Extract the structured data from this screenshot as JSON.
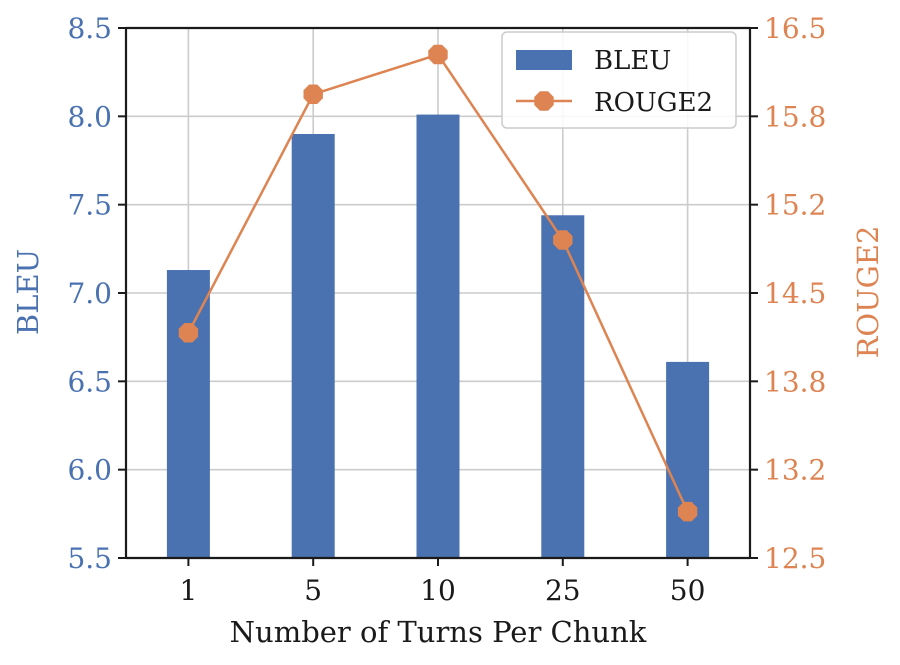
{
  "chart_data": {
    "type": "bar",
    "categories": [
      "1",
      "5",
      "10",
      "25",
      "50"
    ],
    "xlabel": "Number of Turns Per Chunk",
    "series": [
      {
        "name": "BLEU",
        "type": "bar",
        "axis": "left",
        "values": [
          7.13,
          7.9,
          8.01,
          7.44,
          6.61
        ],
        "color": "#4a72b0"
      },
      {
        "name": "ROUGE2",
        "type": "line",
        "axis": "right",
        "marker": "octagon",
        "values": [
          14.2,
          16.0,
          16.3,
          14.9,
          12.85
        ],
        "color": "#dd8452"
      }
    ],
    "y_left": {
      "label": "BLEU",
      "lim": [
        5.5,
        8.5
      ],
      "ticks": [
        "5.5",
        "6.0",
        "6.5",
        "7.0",
        "7.5",
        "8.0",
        "8.5"
      ],
      "color": "#4a72b0"
    },
    "y_right": {
      "label": "ROUGE2",
      "lim": [
        12.5,
        16.5
      ],
      "ticks": [
        "12.5",
        "13.2",
        "13.8",
        "14.5",
        "15.2",
        "15.8",
        "16.5"
      ],
      "color": "#dd8452"
    },
    "grid": true,
    "legend_position": "top-right"
  }
}
